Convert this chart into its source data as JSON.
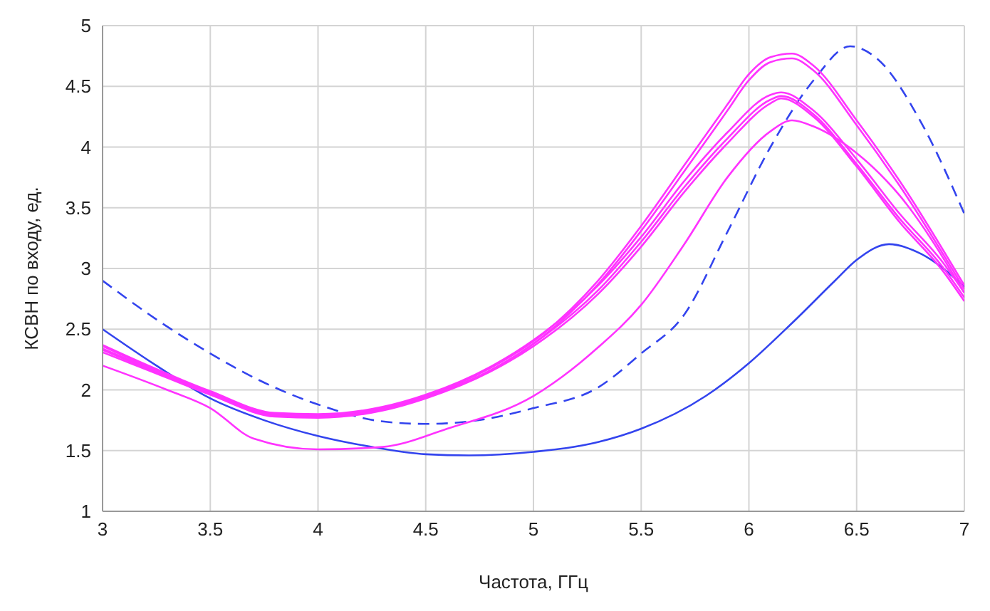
{
  "chart_data": {
    "type": "line",
    "xlabel": "Частота, ГГц",
    "ylabel": "КСВН по входу, ед.",
    "xlim": [
      3,
      7
    ],
    "ylim": [
      1,
      5
    ],
    "xticks": [
      3,
      3.5,
      4,
      4.5,
      5,
      5.5,
      6,
      6.5,
      7
    ],
    "yticks": [
      1,
      1.5,
      2,
      2.5,
      3,
      3.5,
      4,
      4.5,
      5
    ],
    "grid": true,
    "marker": "none",
    "series": [
      {
        "color": "#3344ee",
        "line_style": "solid",
        "x": [
          3,
          3.25,
          3.5,
          3.75,
          4,
          4.25,
          4.5,
          4.7,
          5,
          5.3,
          5.5,
          5.8,
          6,
          6.2,
          6.4,
          6.5,
          6.65,
          6.8,
          7
        ],
        "values": [
          2.5,
          2.2,
          1.93,
          1.75,
          1.62,
          1.53,
          1.47,
          1.46,
          1.49,
          1.57,
          1.68,
          1.95,
          2.22,
          2.55,
          2.9,
          3.07,
          3.2,
          3.12,
          2.85
        ]
      },
      {
        "color": "#3344ee",
        "line_style": "dashed",
        "x": [
          3,
          3.25,
          3.5,
          3.75,
          4,
          4.3,
          4.5,
          4.7,
          5,
          5.3,
          5.5,
          5.7,
          5.9,
          6.1,
          6.3,
          6.47,
          6.6,
          6.8,
          7
        ],
        "values": [
          2.9,
          2.58,
          2.3,
          2.06,
          1.88,
          1.74,
          1.72,
          1.74,
          1.85,
          2.02,
          2.3,
          2.62,
          3.3,
          4,
          4.55,
          4.83,
          4.72,
          4.2,
          3.45
        ]
      },
      {
        "color": "#ff33ff",
        "line_style": "solid",
        "x": [
          3,
          3.2,
          3.5,
          3.8,
          4,
          4.3,
          4.5,
          4.8,
          5,
          5.3,
          5.5,
          5.7,
          5.9,
          6,
          6.1,
          6.2,
          6.3,
          6.5,
          6.7,
          7
        ],
        "values": [
          2.36,
          2.2,
          1.98,
          1.8,
          1.79,
          1.85,
          1.95,
          2.18,
          2.4,
          2.9,
          3.35,
          3.85,
          4.35,
          4.6,
          4.74,
          4.77,
          4.67,
          4.22,
          3.72,
          2.86
        ]
      },
      {
        "color": "#ff33ff",
        "line_style": "solid",
        "x": [
          3,
          3.2,
          3.5,
          3.8,
          4,
          4.3,
          4.5,
          4.8,
          5,
          5.3,
          5.5,
          5.7,
          5.9,
          6,
          6.1,
          6.2,
          6.3,
          6.5,
          6.7,
          7
        ],
        "values": [
          2.33,
          2.18,
          1.97,
          1.79,
          1.78,
          1.84,
          1.94,
          2.16,
          2.38,
          2.87,
          3.31,
          3.8,
          4.3,
          4.55,
          4.7,
          4.73,
          4.63,
          4.18,
          3.68,
          2.83
        ]
      },
      {
        "color": "#ff33ff",
        "line_style": "solid",
        "x": [
          3,
          3.2,
          3.5,
          3.8,
          4,
          4.3,
          4.5,
          4.8,
          5,
          5.3,
          5.5,
          5.7,
          5.9,
          6.1,
          6.15,
          6.3,
          6.5,
          6.7,
          6.9,
          7
        ],
        "values": [
          2.37,
          2.21,
          1.99,
          1.81,
          1.8,
          1.86,
          1.96,
          2.19,
          2.41,
          2.86,
          3.26,
          3.72,
          4.12,
          4.43,
          4.45,
          4.3,
          3.9,
          3.45,
          3.05,
          2.8
        ]
      },
      {
        "color": "#ff33ff",
        "line_style": "solid",
        "x": [
          3,
          3.2,
          3.5,
          3.8,
          4,
          4.3,
          4.5,
          4.8,
          5,
          5.3,
          5.5,
          5.7,
          5.9,
          6.1,
          6.15,
          6.3,
          6.5,
          6.7,
          6.9,
          7
        ],
        "values": [
          2.34,
          2.19,
          1.97,
          1.79,
          1.78,
          1.84,
          1.94,
          2.16,
          2.38,
          2.82,
          3.22,
          3.67,
          4.07,
          4.39,
          4.42,
          4.27,
          3.86,
          3.41,
          3.01,
          2.76
        ]
      },
      {
        "color": "#ff33ff",
        "line_style": "solid",
        "x": [
          3,
          3.2,
          3.5,
          3.8,
          4,
          4.3,
          4.5,
          4.8,
          5,
          5.3,
          5.5,
          5.7,
          5.9,
          6.1,
          6.15,
          6.3,
          6.5,
          6.7,
          6.9,
          7
        ],
        "values": [
          2.31,
          2.17,
          1.96,
          1.78,
          1.77,
          1.83,
          1.93,
          2.15,
          2.36,
          2.79,
          3.18,
          3.63,
          4.03,
          4.36,
          4.4,
          4.25,
          3.84,
          3.38,
          2.98,
          2.73
        ]
      },
      {
        "color": "#ff33ff",
        "line_style": "solid",
        "x": [
          3,
          3.3,
          3.5,
          3.7,
          4,
          4.3,
          4.6,
          5,
          5.3,
          5.5,
          5.7,
          5.9,
          6.1,
          6.2,
          6.3,
          6.5,
          6.7,
          7
        ],
        "values": [
          2.2,
          2,
          1.85,
          1.6,
          1.51,
          1.53,
          1.68,
          1.95,
          2.35,
          2.7,
          3.2,
          3.75,
          4.13,
          4.22,
          4.17,
          3.95,
          3.6,
          2.8
        ]
      }
    ]
  }
}
